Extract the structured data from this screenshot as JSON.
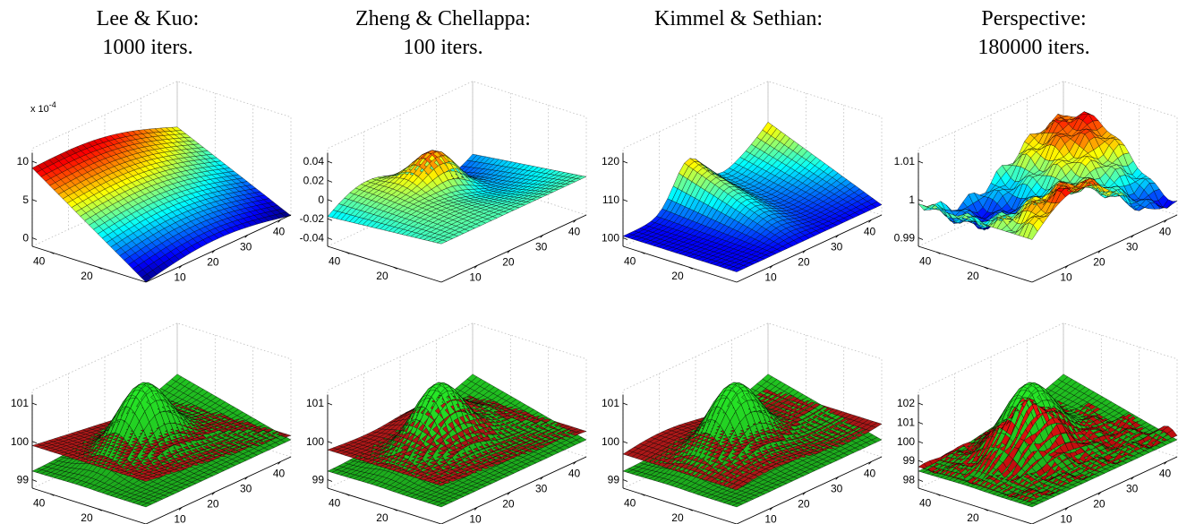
{
  "chart_data": [
    {
      "type": "surface",
      "title": [
        "Lee & Kuo:",
        "1000 iters."
      ],
      "multiplier": "x 10",
      "multiplier_exp": "-4",
      "zticks": [
        "10",
        "5",
        "0"
      ],
      "zlim": [
        -6,
        11
      ],
      "xticks": [
        "10",
        "20",
        "30",
        "40"
      ],
      "yticks": [
        "20",
        "40"
      ],
      "colormap": "jet"
    },
    {
      "type": "surface",
      "title": [
        "Zheng & Chellappa:",
        "100 iters."
      ],
      "zticks": [
        "0.04",
        "0.02",
        "0",
        "-0.02",
        "-0.04"
      ],
      "zlim": [
        -0.06,
        0.05
      ],
      "xticks": [
        "10",
        "20",
        "30",
        "40"
      ],
      "yticks": [
        "20",
        "40"
      ],
      "colormap": "jet"
    },
    {
      "type": "surface",
      "title": [
        "Kimmel & Sethian:",
        ""
      ],
      "zticks": [
        "120",
        "110",
        "100"
      ],
      "zlim": [
        96,
        128
      ],
      "xticks": [
        "10",
        "20",
        "30",
        "40"
      ],
      "yticks": [
        "20",
        "40"
      ],
      "colormap": "jet"
    },
    {
      "type": "surface",
      "title": [
        "Perspective:",
        "180000 iters."
      ],
      "zticks": [
        "1.01",
        "1",
        "0.99"
      ],
      "zlim": [
        0.982,
        1.018
      ],
      "xticks": [
        "10",
        "20",
        "30",
        "40"
      ],
      "yticks": [
        "20",
        "40"
      ],
      "colormap": "jet"
    },
    {
      "type": "surface",
      "overlay": [
        "true-surface",
        "recovered-surface"
      ],
      "zticks": [
        "101",
        "100",
        "99"
      ],
      "zlim": [
        98,
        102
      ],
      "xticks": [
        "10",
        "20",
        "30",
        "40"
      ],
      "yticks": [
        "20",
        "40"
      ],
      "colors": {
        "true": "#22cc22",
        "recovered": "#bb1a1a"
      }
    },
    {
      "type": "surface",
      "overlay": [
        "true-surface",
        "recovered-surface"
      ],
      "zticks": [
        "101",
        "100",
        "99"
      ],
      "zlim": [
        98,
        102
      ],
      "xticks": [
        "10",
        "20",
        "30",
        "40"
      ],
      "yticks": [
        "20",
        "40"
      ],
      "colors": {
        "true": "#22cc22",
        "recovered": "#bb1a1a"
      }
    },
    {
      "type": "surface",
      "overlay": [
        "true-surface",
        "recovered-surface"
      ],
      "zticks": [
        "101",
        "100",
        "99"
      ],
      "zlim": [
        98,
        102
      ],
      "xticks": [
        "10",
        "20",
        "30",
        "40"
      ],
      "yticks": [
        "20",
        "40"
      ],
      "colors": {
        "true": "#22cc22",
        "recovered": "#bb1a1a"
      }
    },
    {
      "type": "surface",
      "overlay": [
        "true-surface",
        "recovered-surface"
      ],
      "zticks": [
        "102",
        "101",
        "100",
        "99",
        "98"
      ],
      "zlim": [
        97.5,
        102.5
      ],
      "xticks": [
        "10",
        "20",
        "30",
        "40"
      ],
      "yticks": [
        "20",
        "40"
      ],
      "colors": {
        "true": "#22cc22",
        "recovered": "#dd1111"
      }
    }
  ]
}
